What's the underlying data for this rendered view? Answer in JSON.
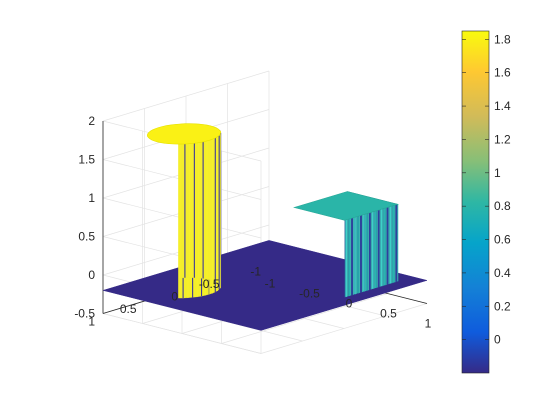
{
  "chart_data": {
    "type": "surface",
    "title": "",
    "xlabel": "",
    "ylabel": "",
    "zlabel": "",
    "xlim": [
      -1,
      1
    ],
    "ylim": [
      -1,
      1
    ],
    "zlim": [
      -0.5,
      2
    ],
    "grid": true,
    "box": false,
    "floor_z": -0.2,
    "x_ticks": [
      "-1",
      "-0.5",
      "0",
      "0.5",
      "1"
    ],
    "y_ticks": [
      "-1",
      "-0.5",
      "0",
      "0.5",
      "1"
    ],
    "z_ticks": [
      "-0.5",
      "0",
      "0.5",
      "1",
      "1.5",
      "2"
    ],
    "objects": [
      {
        "shape": "cylinder",
        "center": [
          -0.5,
          0.5
        ],
        "radius": 0.32,
        "height": 1.8
      },
      {
        "shape": "box",
        "center": [
          0.5,
          -0.5
        ],
        "half_width": 0.32,
        "height": 0.8
      }
    ],
    "colorbar": {
      "colormap": "parula",
      "range": [
        -0.2,
        1.85
      ],
      "position": "right",
      "ticks": [
        "0",
        "0.2",
        "0.4",
        "0.6",
        "0.8",
        "1",
        "1.2",
        "1.4",
        "1.6",
        "1.8"
      ]
    }
  }
}
